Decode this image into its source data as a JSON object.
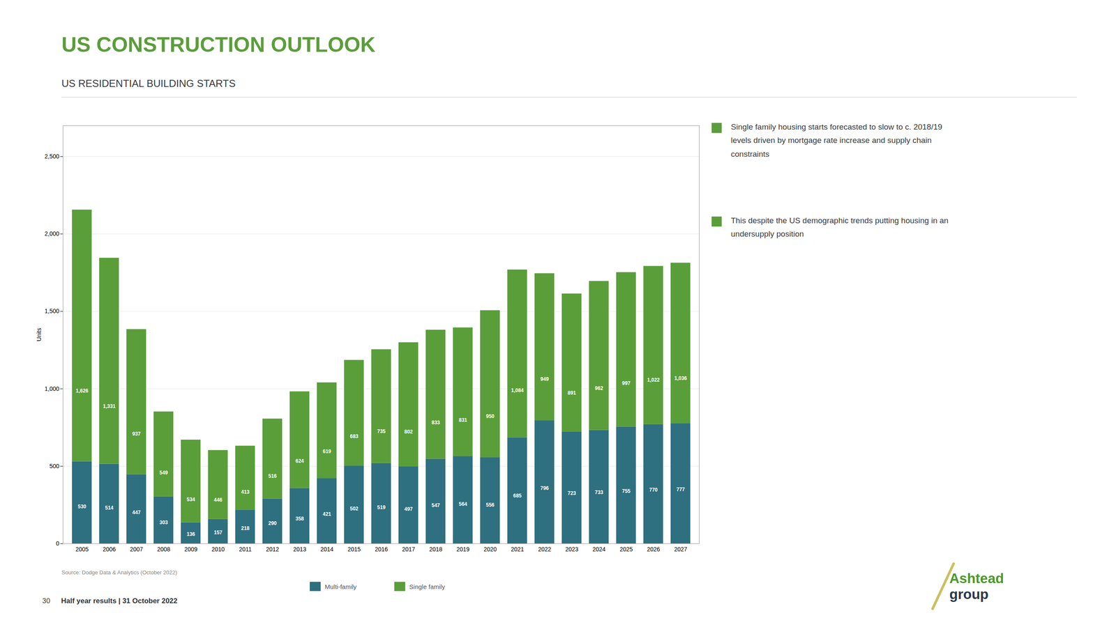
{
  "chart_data": {
    "type": "bar",
    "title": "US CONSTRUCTION OUTLOOK",
    "subtitle": "US RESIDENTIAL BUILDING STARTS",
    "ylabel": "Units",
    "categories": [
      "2005",
      "2006",
      "2007",
      "2008",
      "2009",
      "2010",
      "2011",
      "2012",
      "2013",
      "2014",
      "2015",
      "2016",
      "2017",
      "2018",
      "2019",
      "2020",
      "2021",
      "2022",
      "2023",
      "2024",
      "2025",
      "2026",
      "2027"
    ],
    "series": [
      {
        "name": "Multi-family",
        "color": "#2e7080",
        "values": [
          530,
          514,
          447,
          303,
          136,
          157,
          218,
          290,
          358,
          421,
          502,
          519,
          497,
          547,
          564,
          556,
          685,
          796,
          723,
          733,
          755,
          770,
          777
        ]
      },
      {
        "name": "Single family",
        "color": "#5a9e3a",
        "values": [
          1626,
          1331,
          937,
          549,
          534,
          446,
          413,
          516,
          624,
          619,
          683,
          735,
          802,
          833,
          831,
          950,
          1084,
          949,
          891,
          962,
          997,
          1022,
          1036
        ],
        "value_labels": [
          "1,626",
          "1,331",
          "937",
          "549",
          "534",
          "446",
          "413",
          "516",
          "624",
          "619",
          "683",
          "735",
          "802",
          "833",
          "831",
          "950",
          "1,084",
          "949",
          "891",
          "962",
          "997",
          "1,022",
          "1,036"
        ]
      }
    ],
    "stacked": true,
    "data_labels": true,
    "grid": true,
    "legend": "bottom",
    "ylim": [
      0,
      2700
    ],
    "yticks": [
      0,
      500,
      {
        "value": 1000,
        "label": "1,000"
      },
      {
        "value": 1500,
        "label": "1,500"
      },
      {
        "value": 2000,
        "label": "2,000"
      },
      {
        "value": 2500,
        "label": "2,500"
      }
    ],
    "source": "Source: Dodge Data & Analytics (October 2022)",
    "annotations": [
      "Single family housing starts forecasted to slow to c. 2018/19\nlevels driven by mortgage rate increase and supply chain\nconstraints",
      "This despite the US demographic trends putting housing in an\nundersupply position"
    ],
    "footer": [
      "30",
      "Half year results | 31 October 2022"
    ],
    "logo": [
      "Ashtead",
      "group"
    ]
  }
}
